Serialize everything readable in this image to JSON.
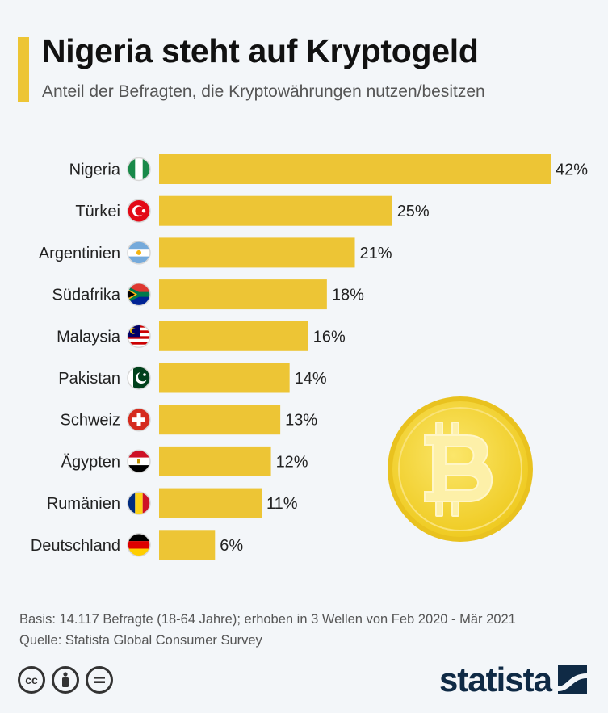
{
  "header": {
    "title": "Nigeria steht auf Kryptogeld",
    "subtitle": "Anteil der Befragten, die Kryptowährungen nutzen/besitzen"
  },
  "chart_data": {
    "type": "bar",
    "orientation": "horizontal",
    "title": "Nigeria steht auf Kryptogeld",
    "subtitle": "Anteil der Befragten, die Kryptowährungen nutzen/besitzen",
    "categories": [
      "Nigeria",
      "Türkei",
      "Argentinien",
      "Südafrika",
      "Malaysia",
      "Pakistan",
      "Schweiz",
      "Ägypten",
      "Rumänien",
      "Deutschland"
    ],
    "values": [
      42,
      25,
      21,
      18,
      16,
      14,
      13,
      12,
      11,
      6
    ],
    "value_labels": [
      "42%",
      "25%",
      "21%",
      "18%",
      "16%",
      "14%",
      "13%",
      "12%",
      "11%",
      "6%"
    ],
    "unit": "%",
    "xlim": [
      0,
      42
    ],
    "bar_color": "#edc535",
    "grid": false,
    "legend": "none"
  },
  "footer": {
    "basis": "Basis: 14.117 Befragte (18-64 Jahre); erhoben in 3 Wellen von Feb 2020 - Mär 2021",
    "source": "Quelle: Statista Global Consumer Survey"
  },
  "license_icons": [
    "cc-icon",
    "attribution-icon",
    "no-derivatives-icon"
  ],
  "brand": {
    "name": "statista",
    "color": "#0f2a45"
  },
  "colors": {
    "accent": "#edc535",
    "background": "#f3f6f9",
    "coin": "#f7d93a"
  }
}
